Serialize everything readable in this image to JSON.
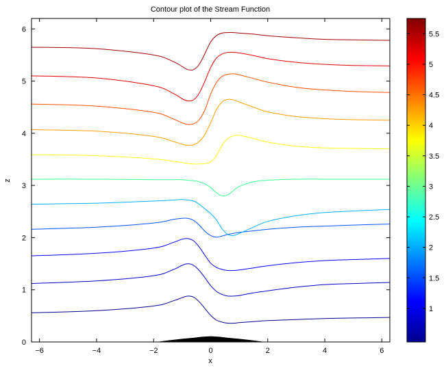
{
  "chart_data": {
    "type": "line",
    "title": "Contour plot of the Stream Function",
    "xlabel": "x",
    "ylabel": "z",
    "xlim": [
      -6.28,
      6.28
    ],
    "ylim": [
      0,
      6.2
    ],
    "xticks": [
      "-6",
      "-4",
      "-2",
      "0",
      "2",
      "4",
      "6"
    ],
    "yticks": [
      "0",
      "1",
      "2",
      "3",
      "4",
      "5",
      "6"
    ],
    "grid": false,
    "legend": "none",
    "colorbar": {
      "range": [
        0.45,
        5.75
      ],
      "ticks": [
        "1",
        "1.5",
        "2",
        "2.5",
        "3",
        "3.5",
        "4",
        "4.5",
        "5",
        "5.5"
      ],
      "colormap": "jet"
    },
    "series": [
      {
        "level": 0.5,
        "color": "#00008f",
        "x": [
          -6.28,
          -4,
          -2,
          -1.3,
          -1,
          -0.8,
          -0.6,
          -0.4,
          -0.2,
          0,
          0.2,
          0.4,
          0.6,
          0.8,
          1,
          1.5,
          2,
          3,
          4,
          5,
          6.28
        ],
        "y": [
          0.56,
          0.6,
          0.69,
          0.79,
          0.85,
          0.88,
          0.86,
          0.77,
          0.64,
          0.51,
          0.42,
          0.38,
          0.36,
          0.36,
          0.37,
          0.39,
          0.41,
          0.43,
          0.45,
          0.46,
          0.47
        ]
      },
      {
        "level": 1.0,
        "color": "#0000c8",
        "x": [
          -6.28,
          -4,
          -2,
          -1.3,
          -1,
          -0.8,
          -0.6,
          -0.4,
          -0.2,
          0,
          0.2,
          0.4,
          0.6,
          0.8,
          1,
          1.5,
          2,
          3,
          4,
          5,
          6.28
        ],
        "y": [
          1.12,
          1.17,
          1.27,
          1.39,
          1.47,
          1.5,
          1.47,
          1.37,
          1.23,
          1.08,
          0.97,
          0.91,
          0.88,
          0.88,
          0.89,
          0.94,
          0.98,
          1.05,
          1.1,
          1.12,
          1.14
        ]
      },
      {
        "level": 1.5,
        "color": "#0000ff",
        "x": [
          -6.28,
          -4,
          -2,
          -1.3,
          -1,
          -0.8,
          -0.6,
          -0.4,
          -0.2,
          0,
          0.2,
          0.4,
          0.6,
          0.8,
          1,
          1.5,
          2,
          3,
          4,
          5,
          6.28
        ],
        "y": [
          1.65,
          1.7,
          1.8,
          1.91,
          1.97,
          1.98,
          1.94,
          1.82,
          1.66,
          1.51,
          1.43,
          1.39,
          1.37,
          1.37,
          1.38,
          1.42,
          1.46,
          1.52,
          1.56,
          1.58,
          1.6
        ]
      },
      {
        "level": 2.0,
        "color": "#0050ff",
        "x": [
          -6.28,
          -4,
          -2,
          -1.3,
          -1,
          -0.8,
          -0.6,
          -0.4,
          -0.2,
          0,
          0.2,
          0.4,
          0.6,
          0.8,
          1,
          1.5,
          2,
          3,
          4,
          5,
          6.28
        ],
        "y": [
          2.16,
          2.2,
          2.28,
          2.35,
          2.37,
          2.37,
          2.33,
          2.24,
          2.12,
          2.04,
          2.01,
          2.03,
          2.06,
          2.08,
          2.1,
          2.13,
          2.16,
          2.2,
          2.22,
          2.24,
          2.26
        ]
      },
      {
        "level": 2.5,
        "color": "#00b0ff",
        "x": [
          -6.28,
          -4,
          -2,
          -1.3,
          -1,
          -0.8,
          -0.6,
          -0.4,
          -0.2,
          0,
          0.2,
          0.4,
          0.6,
          0.8,
          1,
          1.5,
          2,
          3,
          4,
          5,
          6.28
        ],
        "y": [
          2.64,
          2.66,
          2.7,
          2.72,
          2.73,
          2.72,
          2.7,
          2.64,
          2.55,
          2.46,
          2.34,
          2.17,
          2.06,
          2.04,
          2.08,
          2.2,
          2.31,
          2.42,
          2.48,
          2.51,
          2.54
        ]
      },
      {
        "level": 3.0,
        "color": "#3cff8c",
        "x": [
          -6.28,
          -4,
          -2,
          -1.3,
          -1,
          -0.8,
          -0.6,
          -0.4,
          -0.2,
          0,
          0.2,
          0.4,
          0.6,
          0.8,
          1,
          1.5,
          2,
          3,
          4,
          5,
          6.28
        ],
        "y": [
          3.12,
          3.12,
          3.11,
          3.11,
          3.11,
          3.1,
          3.09,
          3.07,
          3.03,
          2.96,
          2.86,
          2.8,
          2.82,
          2.9,
          2.98,
          3.07,
          3.1,
          3.12,
          3.12,
          3.12,
          3.12
        ]
      },
      {
        "level": 3.5,
        "color": "#ffff14",
        "x": [
          -6.28,
          -4,
          -2,
          -1.3,
          -1,
          -0.8,
          -0.6,
          -0.4,
          -0.2,
          0,
          0.2,
          0.4,
          0.6,
          0.8,
          1,
          1.5,
          2,
          3,
          4,
          5,
          6.28
        ],
        "y": [
          3.59,
          3.57,
          3.51,
          3.46,
          3.44,
          3.42,
          3.41,
          3.41,
          3.42,
          3.45,
          3.57,
          3.77,
          3.9,
          3.95,
          3.96,
          3.9,
          3.83,
          3.75,
          3.72,
          3.71,
          3.7
        ]
      },
      {
        "level": 4.0,
        "color": "#ffa000",
        "x": [
          -6.28,
          -4,
          -2,
          -1.3,
          -1,
          -0.8,
          -0.6,
          -0.4,
          -0.2,
          0,
          0.2,
          0.4,
          0.6,
          0.8,
          1,
          1.5,
          2,
          3,
          4,
          5,
          6.28
        ],
        "y": [
          4.07,
          4.04,
          3.94,
          3.84,
          3.79,
          3.77,
          3.78,
          3.84,
          3.98,
          4.2,
          4.45,
          4.6,
          4.65,
          4.64,
          4.6,
          4.5,
          4.41,
          4.32,
          4.28,
          4.26,
          4.25
        ]
      },
      {
        "level": 4.5,
        "color": "#ff5000",
        "x": [
          -6.28,
          -4,
          -2,
          -1.3,
          -1,
          -0.8,
          -0.6,
          -0.4,
          -0.2,
          0,
          0.2,
          0.4,
          0.6,
          0.8,
          1,
          1.5,
          2,
          3,
          4,
          5,
          6.28
        ],
        "y": [
          4.56,
          4.52,
          4.4,
          4.27,
          4.2,
          4.17,
          4.18,
          4.26,
          4.45,
          4.75,
          4.97,
          5.09,
          5.13,
          5.14,
          5.12,
          5.05,
          4.98,
          4.88,
          4.83,
          4.8,
          4.78
        ]
      },
      {
        "level": 5.0,
        "color": "#e00000",
        "x": [
          -6.28,
          -4,
          -2,
          -1.3,
          -1,
          -0.8,
          -0.6,
          -0.4,
          -0.2,
          0,
          0.2,
          0.4,
          0.6,
          0.8,
          1,
          1.5,
          2,
          3,
          4,
          5,
          6.28
        ],
        "y": [
          5.1,
          5.06,
          4.91,
          4.76,
          4.66,
          4.62,
          4.64,
          4.77,
          5.0,
          5.26,
          5.44,
          5.52,
          5.55,
          5.55,
          5.54,
          5.49,
          5.43,
          5.36,
          5.32,
          5.3,
          5.29
        ]
      },
      {
        "level": 5.5,
        "color": "#a00000",
        "x": [
          -6.28,
          -4,
          -2,
          -1.3,
          -1,
          -0.8,
          -0.6,
          -0.4,
          -0.2,
          0,
          0.2,
          0.4,
          0.6,
          0.8,
          1,
          1.5,
          2,
          3,
          4,
          5,
          6.28
        ],
        "y": [
          5.65,
          5.62,
          5.5,
          5.37,
          5.28,
          5.22,
          5.22,
          5.32,
          5.53,
          5.75,
          5.87,
          5.92,
          5.93,
          5.93,
          5.92,
          5.9,
          5.87,
          5.83,
          5.8,
          5.79,
          5.78
        ]
      }
    ],
    "terrain": {
      "color": "#000000",
      "x": [
        -1.9,
        -1.5,
        -1,
        -0.6,
        -0.3,
        0,
        0.3,
        0.6,
        1,
        1.5,
        1.9
      ],
      "y": [
        0,
        0.03,
        0.06,
        0.08,
        0.1,
        0.11,
        0.1,
        0.08,
        0.06,
        0.03,
        0
      ]
    }
  }
}
